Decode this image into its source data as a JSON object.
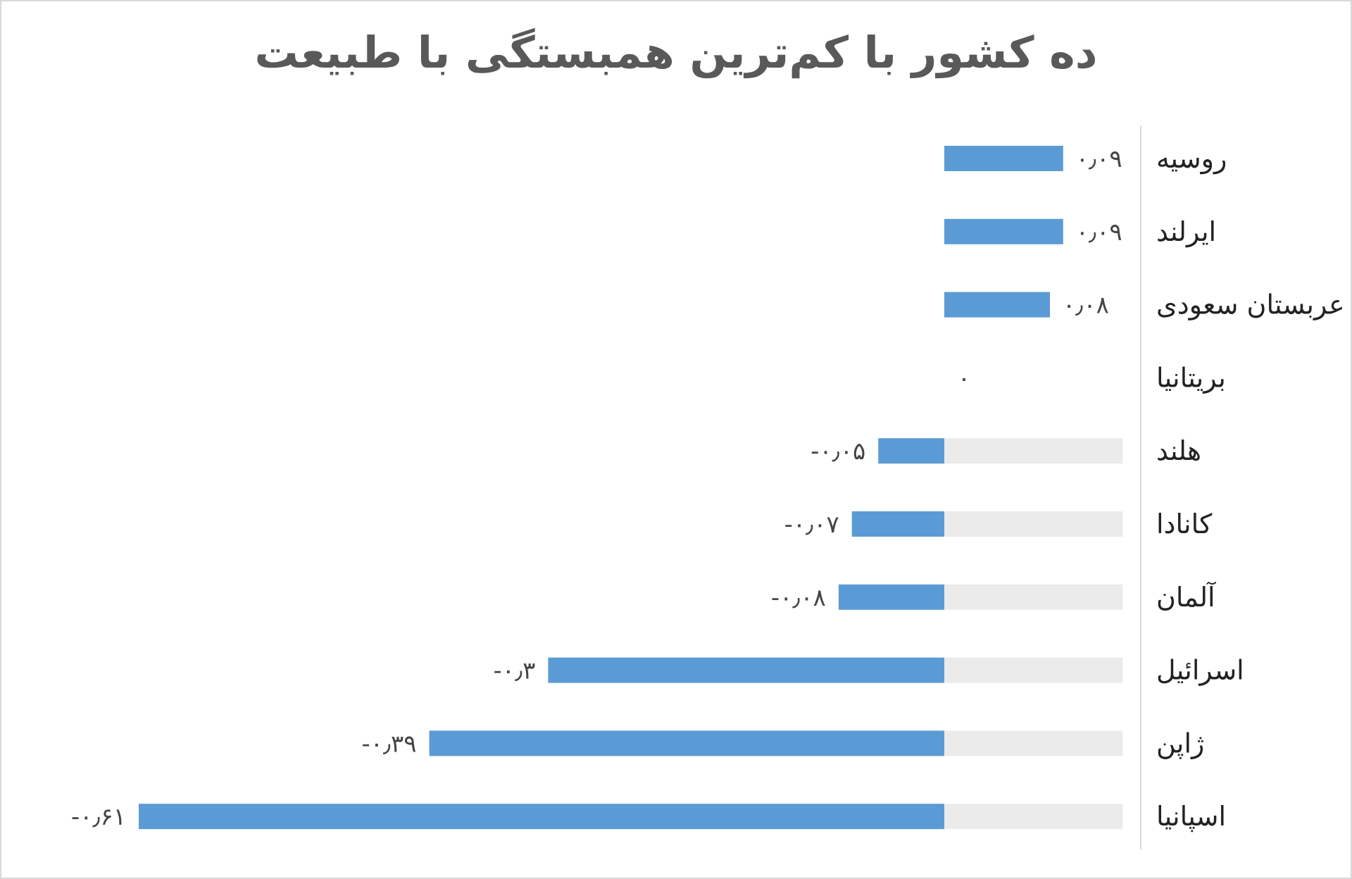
{
  "chart_data": {
    "type": "bar",
    "orientation": "horizontal",
    "title": "ده کشور با کم‌ترین همبستگی با طبیعت",
    "categories": [
      "روسیه",
      "ایرلند",
      "عربستان سعودی",
      "بریتانیا",
      "هلند",
      "کانادا",
      "آلمان",
      "اسرائیل",
      "ژاپن",
      "اسپانیا"
    ],
    "values": [
      0.09,
      0.09,
      0.08,
      0,
      -0.05,
      -0.07,
      -0.08,
      -0.3,
      -0.39,
      -0.61
    ],
    "value_labels": [
      "۰٫۰۹",
      "۰٫۰۹",
      "۰٫۰۸",
      "۰",
      "-۰٫۰۵",
      "-۰٫۰۷",
      "-۰٫۰۸",
      "-۰٫۳",
      "-۰٫۳۹",
      "-۰٫۶۱"
    ],
    "background_band": [
      0,
      0.135
    ],
    "xlim": [
      -0.61,
      0.09
    ],
    "grid": false,
    "legend": "none",
    "colors": {
      "bar": "#5b9bd5",
      "band": "#ebebeb",
      "axis": "#d9d9d9",
      "title": "#595959"
    }
  }
}
